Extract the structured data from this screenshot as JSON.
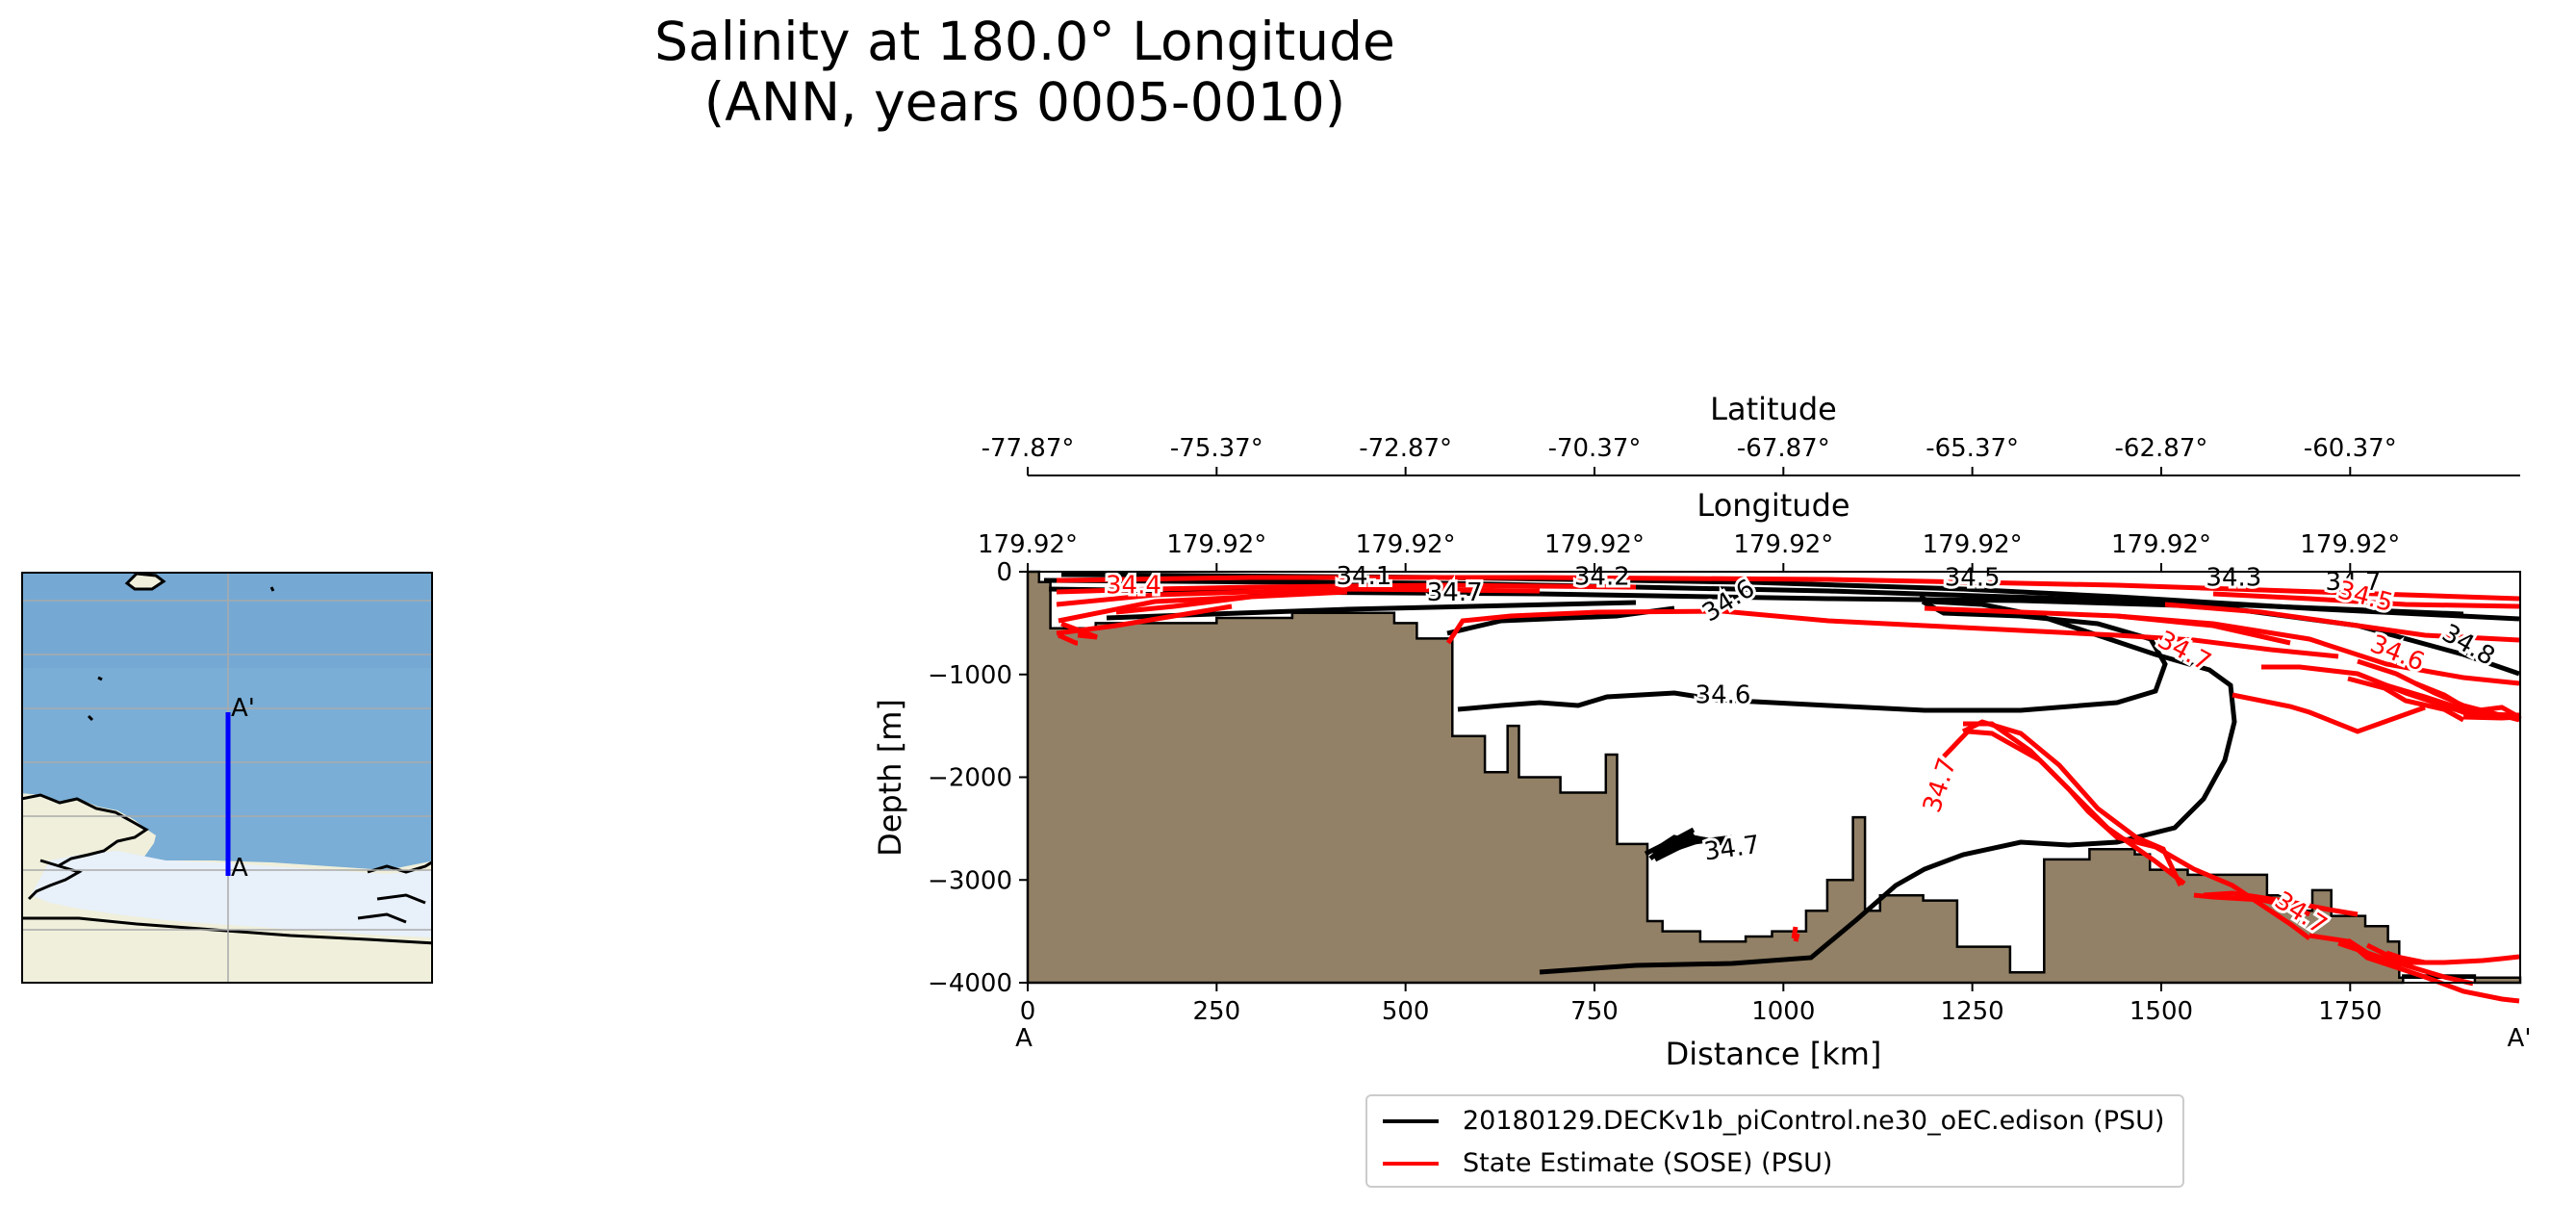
{
  "title": {
    "line1": "Salinity at 180.0° Longitude",
    "line2": "(ANN, years 0005-0010)"
  },
  "colors": {
    "model": "#000000",
    "observations": "#ff0000",
    "bathymetry": "#928166",
    "transect": "#0000ff",
    "ocean": "#7aaed6",
    "ice_shelf": "#e8f0fa",
    "land": "#efefdb"
  },
  "inset_map": {
    "start_label": "A",
    "end_label": "A'"
  },
  "chart_data": {
    "type": "line",
    "title": "Salinity at 180.0° Longitude (ANN, years 0005-0010)",
    "xlabel": "Distance [km]",
    "ylabel": "Depth [m]",
    "xlim": [
      0,
      1975
    ],
    "ylim": [
      -4000,
      0
    ],
    "x_ticks": [
      0,
      250,
      500,
      750,
      1000,
      1250,
      1500,
      1750
    ],
    "x_tick_labels": [
      "0",
      "250",
      "500",
      "750",
      "1000",
      "1250",
      "1500",
      "1750"
    ],
    "y_ticks": [
      0,
      -1000,
      -2000,
      -3000,
      -4000
    ],
    "y_tick_labels": [
      "0",
      "−1000",
      "−2000",
      "−3000",
      "−4000"
    ],
    "section_start_label": "A",
    "section_end_label": "A'",
    "top_axis_lower": {
      "label": "Longitude",
      "tick_labels": [
        "179.92°",
        "179.92°",
        "179.92°",
        "179.92°",
        "179.92°",
        "179.92°",
        "179.92°",
        "179.92°"
      ]
    },
    "top_axis_upper": {
      "label": "Latitude",
      "tick_labels": [
        "-77.87°",
        "-75.37°",
        "-72.87°",
        "-70.37°",
        "-67.87°",
        "-65.37°",
        "-62.87°",
        "-60.37°"
      ]
    },
    "legend": [
      {
        "label": "20180129.DECKv1b_piControl.ne30_oEC.edison (PSU)",
        "color": "#000000"
      },
      {
        "label": "State Estimate (SOSE) (PSU)",
        "color": "#ff0000"
      }
    ],
    "bathymetry": [
      [
        0,
        0
      ],
      [
        0,
        -4000
      ],
      [
        1820,
        -4000
      ],
      [
        1820,
        -3930
      ],
      [
        1915,
        -3930
      ],
      [
        1915,
        -4000
      ],
      [
        1975,
        -4000
      ],
      [
        1975,
        -3950
      ],
      [
        1815,
        -3950
      ],
      [
        1815,
        -3600
      ],
      [
        1800,
        -3600
      ],
      [
        1800,
        -3450
      ],
      [
        1770,
        -3450
      ],
      [
        1770,
        -3350
      ],
      [
        1725,
        -3350
      ],
      [
        1725,
        -3100
      ],
      [
        1700,
        -3100
      ],
      [
        1700,
        -3300
      ],
      [
        1668,
        -3300
      ],
      [
        1668,
        -3150
      ],
      [
        1640,
        -3150
      ],
      [
        1640,
        -2950
      ],
      [
        1535,
        -2950
      ],
      [
        1535,
        -2900
      ],
      [
        1485,
        -2900
      ],
      [
        1485,
        -2750
      ],
      [
        1465,
        -2750
      ],
      [
        1465,
        -2700
      ],
      [
        1405,
        -2700
      ],
      [
        1405,
        -2800
      ],
      [
        1345,
        -2800
      ],
      [
        1345,
        -3900
      ],
      [
        1300,
        -3900
      ],
      [
        1300,
        -3650
      ],
      [
        1230,
        -3650
      ],
      [
        1230,
        -3200
      ],
      [
        1185,
        -3200
      ],
      [
        1185,
        -3150
      ],
      [
        1128,
        -3150
      ],
      [
        1128,
        -3300
      ],
      [
        1108,
        -3300
      ],
      [
        1108,
        -2390
      ],
      [
        1092,
        -2390
      ],
      [
        1092,
        -3000
      ],
      [
        1058,
        -3000
      ],
      [
        1058,
        -3300
      ],
      [
        1030,
        -3300
      ],
      [
        1030,
        -3500
      ],
      [
        985,
        -3500
      ],
      [
        985,
        -3550
      ],
      [
        950,
        -3550
      ],
      [
        950,
        -3600
      ],
      [
        890,
        -3600
      ],
      [
        890,
        -3500
      ],
      [
        840,
        -3500
      ],
      [
        840,
        -3400
      ],
      [
        820,
        -3400
      ],
      [
        820,
        -2650
      ],
      [
        780,
        -2650
      ],
      [
        780,
        -1780
      ],
      [
        765,
        -1780
      ],
      [
        765,
        -2150
      ],
      [
        705,
        -2150
      ],
      [
        705,
        -2000
      ],
      [
        650,
        -2000
      ],
      [
        650,
        -1500
      ],
      [
        635,
        -1500
      ],
      [
        635,
        -1950
      ],
      [
        605,
        -1950
      ],
      [
        605,
        -1600
      ],
      [
        562,
        -1600
      ],
      [
        562,
        -650
      ],
      [
        515,
        -650
      ],
      [
        515,
        -500
      ],
      [
        485,
        -500
      ],
      [
        485,
        -400
      ],
      [
        350,
        -400
      ],
      [
        350,
        -450
      ],
      [
        250,
        -450
      ],
      [
        250,
        -500
      ],
      [
        90,
        -500
      ],
      [
        90,
        -550
      ],
      [
        30,
        -550
      ],
      [
        30,
        -100
      ],
      [
        15,
        -100
      ],
      [
        15,
        0
      ]
    ],
    "contour_labels_model": [
      {
        "label": "34.6",
        "x": 920,
        "y": -1210,
        "rotation": 0
      },
      {
        "label": "34.7",
        "x": 932,
        "y": -2700,
        "rotation": -8
      },
      {
        "label": "34.7",
        "x": 565,
        "y": -210,
        "rotation": 0
      },
      {
        "label": "34.6",
        "x": 928,
        "y": -290,
        "rotation": -32
      },
      {
        "label": "34.8",
        "x": 1906,
        "y": -720,
        "rotation": 30
      },
      {
        "label": "34.1",
        "x": 445,
        "y": -50,
        "rotation": 0
      },
      {
        "label": "34.2",
        "x": 760,
        "y": -55,
        "rotation": 0
      },
      {
        "label": "34.5",
        "x": 1250,
        "y": -65,
        "rotation": 0
      },
      {
        "label": "34.3",
        "x": 1596,
        "y": -65,
        "rotation": 0
      },
      {
        "label": "34.7",
        "x": 1754,
        "y": -110,
        "rotation": 0
      }
    ],
    "contour_labels_obs": [
      {
        "label": "34.7",
        "x": 1208,
        "y": -2080,
        "rotation": -72
      },
      {
        "label": "34.7",
        "x": 1530,
        "y": -780,
        "rotation": 28
      },
      {
        "label": "34.6",
        "x": 1812,
        "y": -800,
        "rotation": 22
      },
      {
        "label": "34.7",
        "x": 1684,
        "y": -3330,
        "rotation": 33
      },
      {
        "label": "34.5",
        "x": 1770,
        "y": -250,
        "rotation": 15
      },
      {
        "label": "34.4",
        "x": 140,
        "y": -140,
        "rotation": 0
      }
    ]
  }
}
